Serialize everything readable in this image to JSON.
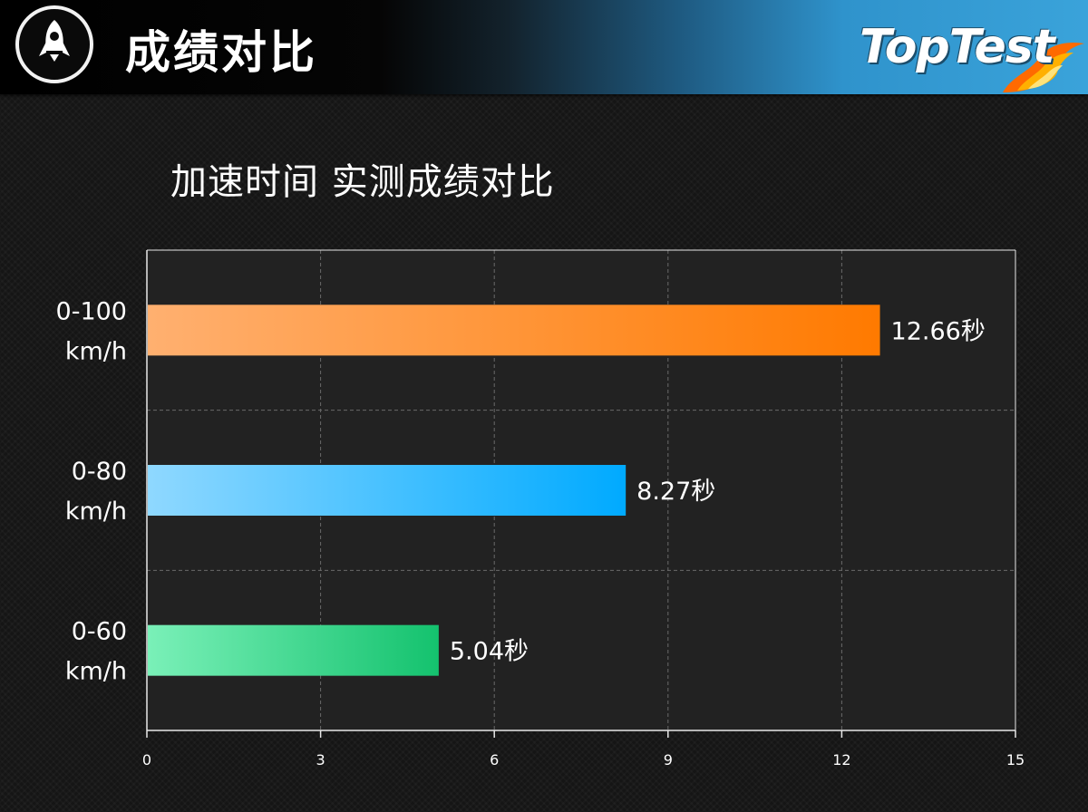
{
  "header": {
    "title": "成绩对比",
    "logo_text": "TopTest",
    "badge_icon": "rocket-icon",
    "logo_icon": "flame-icon"
  },
  "chart_title": "加速时间 实测成绩对比",
  "chart_data": {
    "type": "bar",
    "orientation": "horizontal",
    "title": "加速时间 实测成绩对比",
    "categories": [
      [
        "0-100",
        "km/h"
      ],
      [
        "0-80",
        "km/h"
      ],
      [
        "0-60",
        "km/h"
      ]
    ],
    "values": [
      12.66,
      8.27,
      5.04
    ],
    "value_labels": [
      "12.66秒",
      "8.27秒",
      "5.04秒"
    ],
    "xlim": [
      0,
      15
    ],
    "xticks": [
      "0",
      "3",
      "6",
      "9",
      "12",
      "15"
    ],
    "grid": true,
    "bar_colors": [
      [
        "#ffb070",
        "#ff7a00"
      ],
      [
        "#8fd8ff",
        "#00aaff"
      ],
      [
        "#7af0b8",
        "#14c26e"
      ]
    ]
  }
}
